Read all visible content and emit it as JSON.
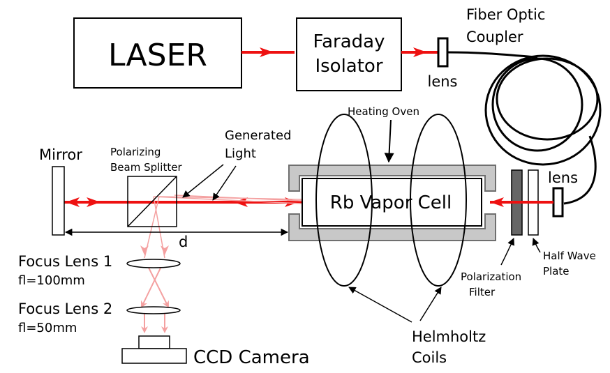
{
  "colors": {
    "beam": "#ee1111",
    "generated_light": "#f4a0a0",
    "oven_fill": "#c8c8c8",
    "oven_stroke": "#6f6f6f",
    "polarizer_fill": "#666666",
    "outline": "#000000"
  },
  "labels": {
    "laser": "LASER",
    "faraday_line1": "Faraday",
    "faraday_line2": "Isolator",
    "lens_top": "lens",
    "fiber_line1": "Fiber Optic",
    "fiber_line2": "Coupler",
    "heating_oven": "Heating Oven",
    "generated_line1": "Generated",
    "generated_line2": "Light",
    "mirror": "Mirror",
    "pbs_line1": "Polarizing",
    "pbs_line2": "Beam Splitter",
    "rb_cell": "Rb Vapor Cell",
    "lens_right": "lens",
    "distance": "d",
    "focus_lens1": "Focus Lens 1",
    "focus_lens1_fl": "fl=100mm",
    "focus_lens2": "Focus Lens 2",
    "focus_lens2_fl": "fl=50mm",
    "ccd": "CCD Camera",
    "polarization_line1": "Polarization",
    "polarization_line2": "Filter",
    "half_wave_line1": "Half Wave",
    "half_wave_line2": "Plate",
    "helmholtz_line1": "Helmholtz",
    "helmholtz_line2": "Coils"
  }
}
